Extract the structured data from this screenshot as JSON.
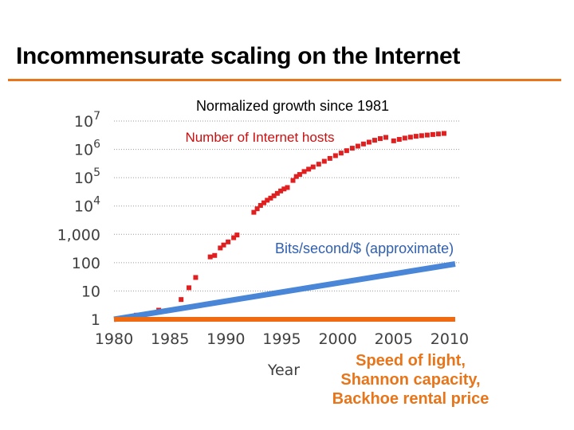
{
  "slide": {
    "title": "Incommensurate scaling on the Internet",
    "accent_color": "#e8751a"
  },
  "chart_data": {
    "type": "line",
    "title": "Normalized growth since 1981",
    "xlabel": "Year",
    "ylabel": "",
    "y_scale": "log",
    "xlim": [
      1980,
      2011
    ],
    "ylim": [
      1,
      10000000
    ],
    "x_ticks": [
      "1980",
      "1985",
      "1990",
      "1995",
      "2000",
      "2005",
      "2010"
    ],
    "y_ticks": [
      {
        "value": 1,
        "base": "1",
        "exp": ""
      },
      {
        "value": 10,
        "base": "10",
        "exp": ""
      },
      {
        "value": 100,
        "base": "100",
        "exp": ""
      },
      {
        "value": 1000,
        "base": "1,000",
        "exp": ""
      },
      {
        "value": 10000,
        "base": "10",
        "exp": "4"
      },
      {
        "value": 100000,
        "base": "10",
        "exp": "5"
      },
      {
        "value": 1000000,
        "base": "10",
        "exp": "6"
      },
      {
        "value": 10000000,
        "base": "10",
        "exp": "7"
      }
    ],
    "grid": "horizontal dotted",
    "series": [
      {
        "name": "Number of Internet hosts",
        "color": "#e02020",
        "style": "square-markers",
        "label_position": "top-left",
        "points": [
          [
            1981,
            1
          ],
          [
            1982,
            1.4
          ],
          [
            1984,
            2.1
          ],
          [
            1986,
            5
          ],
          [
            1986.7,
            13
          ],
          [
            1987.3,
            30
          ],
          [
            1988.6,
            160
          ],
          [
            1989.0,
            180
          ],
          [
            1989.5,
            330
          ],
          [
            1989.8,
            420
          ],
          [
            1990.2,
            540
          ],
          [
            1990.7,
            760
          ],
          [
            1991.0,
            950
          ],
          [
            1992.5,
            6000
          ],
          [
            1992.8,
            8000
          ],
          [
            1993.1,
            10500
          ],
          [
            1993.4,
            13000
          ],
          [
            1993.7,
            16000
          ],
          [
            1994.0,
            19000
          ],
          [
            1994.3,
            23000
          ],
          [
            1994.6,
            28000
          ],
          [
            1994.9,
            34000
          ],
          [
            1995.2,
            40000
          ],
          [
            1995.5,
            45000
          ],
          [
            1996.0,
            80000
          ],
          [
            1996.3,
            110000
          ],
          [
            1996.6,
            130000
          ],
          [
            1997.0,
            165000
          ],
          [
            1997.4,
            200000
          ],
          [
            1997.8,
            240000
          ],
          [
            1998.3,
            300000
          ],
          [
            1998.8,
            380000
          ],
          [
            1999.3,
            480000
          ],
          [
            1999.8,
            600000
          ],
          [
            2000.3,
            740000
          ],
          [
            2000.8,
            900000
          ],
          [
            2001.3,
            1100000
          ],
          [
            2001.8,
            1300000
          ],
          [
            2002.3,
            1550000
          ],
          [
            2002.8,
            1800000
          ],
          [
            2003.3,
            2100000
          ],
          [
            2003.8,
            2400000
          ],
          [
            2004.3,
            2650000
          ],
          [
            2005.0,
            2000000
          ],
          [
            2005.5,
            2250000
          ],
          [
            2006.0,
            2500000
          ],
          [
            2006.5,
            2700000
          ],
          [
            2007.0,
            2900000
          ],
          [
            2007.5,
            3050000
          ],
          [
            2008.0,
            3200000
          ],
          [
            2008.5,
            3350000
          ],
          [
            2009.0,
            3500000
          ],
          [
            2009.5,
            3650000
          ]
        ]
      },
      {
        "name": "Bits/second/$ (approximate)",
        "color": "#4a86d8",
        "style": "thick-line",
        "label_position": "right",
        "points": [
          [
            1980,
            1
          ],
          [
            2010.5,
            90
          ]
        ]
      },
      {
        "name": "",
        "color": "#f06a12",
        "style": "thick-line",
        "points": [
          [
            1980,
            1
          ],
          [
            2010.5,
            1
          ]
        ]
      }
    ],
    "flat_line_caption": [
      "Speed of light,",
      "Shannon capacity,",
      "Backhoe rental price"
    ]
  }
}
